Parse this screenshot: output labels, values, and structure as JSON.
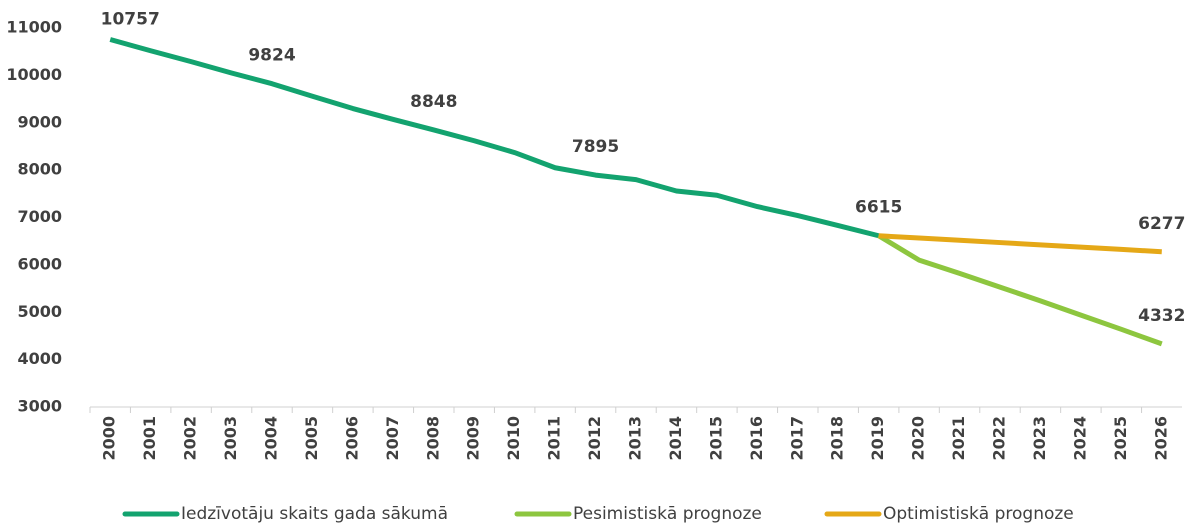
{
  "chart_data": {
    "type": "line",
    "categories": [
      "2000",
      "2001",
      "2002",
      "2003",
      "2004",
      "2005",
      "2006",
      "2007",
      "2008",
      "2009",
      "2010",
      "2011",
      "2012",
      "2013",
      "2014",
      "2015",
      "2016",
      "2017",
      "2018",
      "2019",
      "2020",
      "2021",
      "2022",
      "2023",
      "2024",
      "2025",
      "2026"
    ],
    "series": [
      {
        "name": "Iedzīvotāju skaits gada sākumā",
        "color": "#13a36f",
        "values": [
          10757,
          10520,
          10290,
          10050,
          9824,
          9560,
          9300,
          9070,
          8848,
          8620,
          8370,
          8050,
          7895,
          7800,
          7560,
          7470,
          7230,
          7040,
          6830,
          6615,
          null,
          null,
          null,
          null,
          null,
          null,
          null
        ],
        "label_indices": [
          0,
          4,
          8,
          12,
          19
        ]
      },
      {
        "name": "Pesimistiskā prognoze",
        "color": "#8dc63f",
        "values": [
          null,
          null,
          null,
          null,
          null,
          null,
          null,
          null,
          null,
          null,
          null,
          null,
          null,
          null,
          null,
          null,
          null,
          null,
          null,
          6615,
          6100,
          5820,
          5530,
          5240,
          4940,
          4640,
          4332
        ],
        "label_indices": [
          26
        ]
      },
      {
        "name": "Optimistiskā prognoze",
        "color": "#e5a817",
        "values": [
          null,
          null,
          null,
          null,
          null,
          null,
          null,
          null,
          null,
          null,
          null,
          null,
          null,
          null,
          null,
          null,
          null,
          null,
          null,
          6615,
          6567,
          6519,
          6471,
          6422,
          6374,
          6326,
          6277
        ],
        "label_indices": [
          26
        ]
      }
    ],
    "ylim": [
      3000,
      11000
    ],
    "yticks": [
      3000,
      4000,
      5000,
      6000,
      7000,
      8000,
      9000,
      10000,
      11000
    ],
    "grid": false,
    "legend": "bottom"
  }
}
